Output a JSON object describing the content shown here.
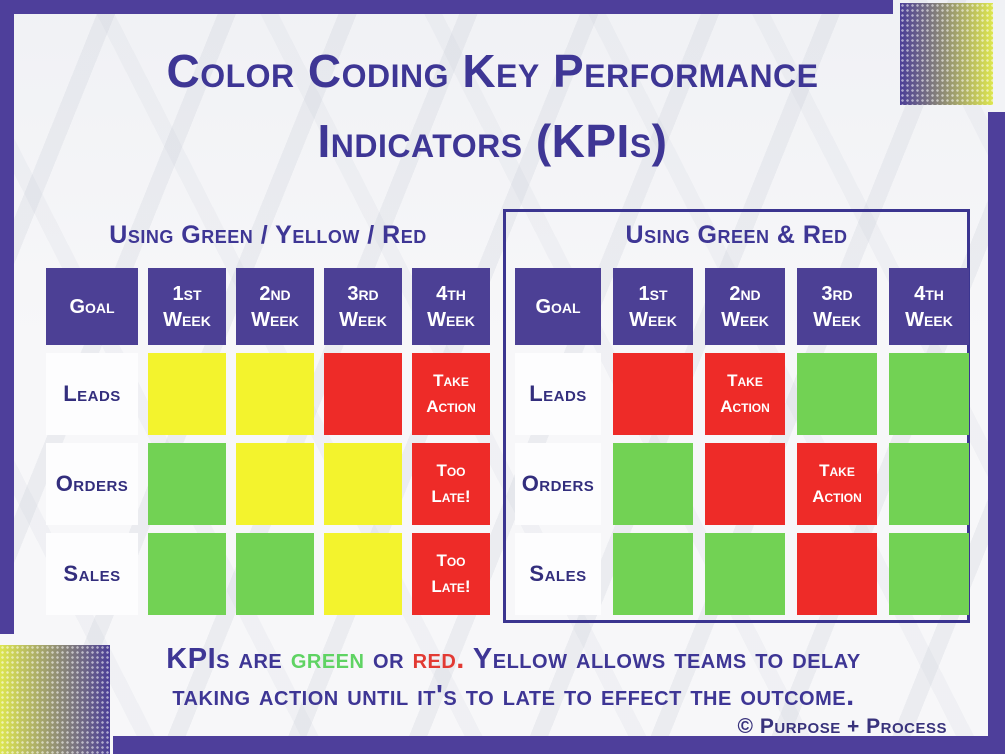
{
  "title": {
    "line1": "Color Coding Key Performance",
    "line2": "Indicators (KPIs)"
  },
  "colors": {
    "bar_purple": "#4e3f9b",
    "header_purple": "#4c4095",
    "text_purple": "#3e3695",
    "green": "#72d254",
    "yellow": "#f3f32d",
    "red": "#ee2b28",
    "footer_green": "#5fd363",
    "footer_red": "#e23a33",
    "credit_purple": "#39337c"
  },
  "tables": [
    {
      "title": "Using Green / Yellow / Red",
      "columns": [
        "Goal",
        "1st Week",
        "2nd Week",
        "3rd Week",
        "4th Week"
      ],
      "rows": [
        {
          "label": "Leads",
          "cells": [
            {
              "color": "yellow",
              "text": ""
            },
            {
              "color": "yellow",
              "text": ""
            },
            {
              "color": "red",
              "text": ""
            },
            {
              "color": "red",
              "text": "Take Action"
            }
          ]
        },
        {
          "label": "Orders",
          "cells": [
            {
              "color": "green",
              "text": ""
            },
            {
              "color": "yellow",
              "text": ""
            },
            {
              "color": "yellow",
              "text": ""
            },
            {
              "color": "red",
              "text": "Too Late!"
            }
          ]
        },
        {
          "label": "Sales",
          "cells": [
            {
              "color": "green",
              "text": ""
            },
            {
              "color": "green",
              "text": ""
            },
            {
              "color": "yellow",
              "text": ""
            },
            {
              "color": "red",
              "text": "Too Late!"
            }
          ]
        }
      ]
    },
    {
      "title": "Using Green & Red",
      "columns": [
        "Goal",
        "1st Week",
        "2nd Week",
        "3rd Week",
        "4th Week"
      ],
      "rows": [
        {
          "label": "Leads",
          "cells": [
            {
              "color": "red",
              "text": ""
            },
            {
              "color": "red",
              "text": "Take Action"
            },
            {
              "color": "green",
              "text": ""
            },
            {
              "color": "green",
              "text": ""
            }
          ]
        },
        {
          "label": "Orders",
          "cells": [
            {
              "color": "green",
              "text": ""
            },
            {
              "color": "red",
              "text": ""
            },
            {
              "color": "red",
              "text": "Take Action"
            },
            {
              "color": "green",
              "text": ""
            }
          ]
        },
        {
          "label": "Sales",
          "cells": [
            {
              "color": "green",
              "text": ""
            },
            {
              "color": "green",
              "text": ""
            },
            {
              "color": "red",
              "text": ""
            },
            {
              "color": "green",
              "text": ""
            }
          ]
        }
      ]
    }
  ],
  "footer": {
    "line1_pre": "KPIs are ",
    "line1_green_word": "green",
    "line1_mid": " or ",
    "line1_red_word": "red.",
    "line1_post": " Yellow allows teams to delay",
    "line2": "taking action until it's to late to effect the outcome.",
    "credit": "© Purpose + Process"
  }
}
